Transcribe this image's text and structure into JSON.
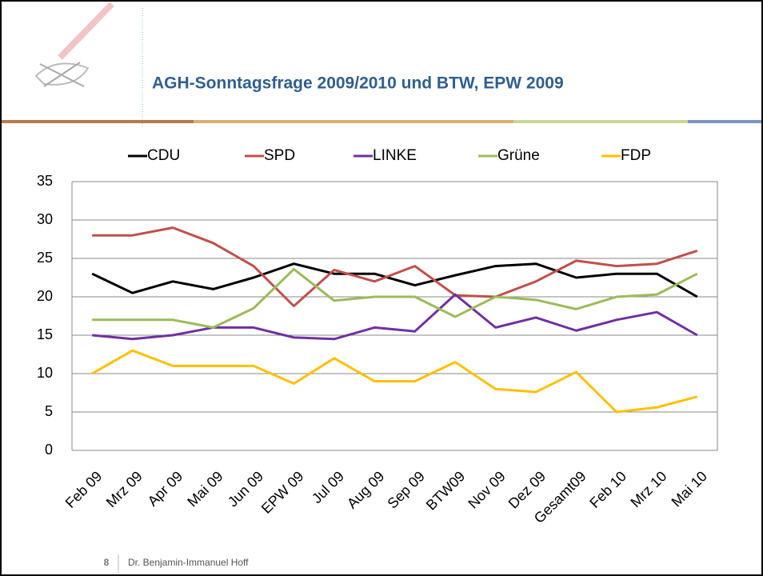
{
  "chart_data": {
    "type": "line",
    "title": "AGH-Sonntagsfrage 2009/2010 und BTW, EPW 2009",
    "categories": [
      "Feb 09",
      "Mrz 09",
      "Apr 09",
      "Mai 09",
      "Jun 09",
      "EPW 09",
      "Jul 09",
      "Aug 09",
      "Sep 09",
      "BTW09",
      "Nov 09",
      "Dez 09",
      "Gesamt09",
      "Feb 10",
      "Mrz 10",
      "Mai 10"
    ],
    "series": [
      {
        "name": "CDU",
        "color": "#000000",
        "values": [
          23,
          20.5,
          22,
          21,
          22.5,
          24.3,
          23,
          23,
          21.5,
          22.8,
          24,
          24.3,
          22.5,
          23,
          23,
          20
        ]
      },
      {
        "name": "SPD",
        "color": "#c0504d",
        "values": [
          28,
          28,
          29,
          27,
          24,
          18.8,
          23.5,
          22,
          24,
          20.2,
          20,
          22,
          24.7,
          24,
          24.3,
          26
        ]
      },
      {
        "name": "LINKE",
        "color": "#7030a0",
        "values": [
          15,
          14.5,
          15,
          16,
          16,
          14.7,
          14.5,
          16,
          15.5,
          20.3,
          16,
          17.3,
          15.6,
          17,
          18,
          15
        ]
      },
      {
        "name": "Grüne",
        "color": "#9bbb59",
        "values": [
          17,
          17,
          17,
          16,
          18.5,
          23.6,
          19.5,
          20,
          20,
          17.4,
          20,
          19.6,
          18.4,
          20,
          20.3,
          23
        ]
      },
      {
        "name": "FDP",
        "color": "#ffc000",
        "values": [
          10,
          13,
          11,
          11,
          11,
          8.7,
          12,
          9,
          9,
          11.5,
          8,
          7.6,
          10.2,
          5,
          5.6,
          7
        ]
      }
    ],
    "ylim": [
      0,
      35
    ],
    "yticks": [
      0,
      5,
      10,
      15,
      20,
      25,
      30,
      35
    ],
    "grid": true,
    "legend": "top"
  },
  "slide": {
    "number": 8,
    "author": "Dr. Benjamin-Immanuel Hoff"
  }
}
